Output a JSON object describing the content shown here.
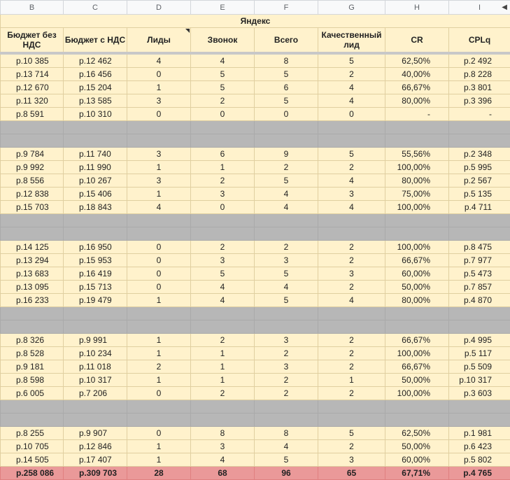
{
  "column_letters": [
    "B",
    "C",
    "D",
    "E",
    "F",
    "G",
    "H",
    "I"
  ],
  "group_title": "Яндекс",
  "headers": [
    "Бюджет без НДС",
    "Бюджет с НДС",
    "Лиды",
    "Звонок",
    "Всего",
    "Качественный лид",
    "CR",
    "CPLq"
  ],
  "blocks": [
    [
      [
        "р.10 385",
        "р.12 462",
        "4",
        "4",
        "8",
        "5",
        "62,50%",
        "р.2 492"
      ],
      [
        "р.13 714",
        "р.16 456",
        "0",
        "5",
        "5",
        "2",
        "40,00%",
        "р.8 228"
      ],
      [
        "р.12 670",
        "р.15 204",
        "1",
        "5",
        "6",
        "4",
        "66,67%",
        "р.3 801"
      ],
      [
        "р.11 320",
        "р.13 585",
        "3",
        "2",
        "5",
        "4",
        "80,00%",
        "р.3 396"
      ],
      [
        "р.8 591",
        "р.10 310",
        "0",
        "0",
        "0",
        "0",
        "-",
        "-"
      ]
    ],
    [
      [
        "р.9 784",
        "р.11 740",
        "3",
        "6",
        "9",
        "5",
        "55,56%",
        "р.2 348"
      ],
      [
        "р.9 992",
        "р.11 990",
        "1",
        "1",
        "2",
        "2",
        "100,00%",
        "р.5 995"
      ],
      [
        "р.8 556",
        "р.10 267",
        "3",
        "2",
        "5",
        "4",
        "80,00%",
        "р.2 567"
      ],
      [
        "р.12 838",
        "р.15 406",
        "1",
        "3",
        "4",
        "3",
        "75,00%",
        "р.5 135"
      ],
      [
        "р.15 703",
        "р.18 843",
        "4",
        "0",
        "4",
        "4",
        "100,00%",
        "р.4 711"
      ]
    ],
    [
      [
        "р.14 125",
        "р.16 950",
        "0",
        "2",
        "2",
        "2",
        "100,00%",
        "р.8 475"
      ],
      [
        "р.13 294",
        "р.15 953",
        "0",
        "3",
        "3",
        "2",
        "66,67%",
        "р.7 977"
      ],
      [
        "р.13 683",
        "р.16 419",
        "0",
        "5",
        "5",
        "3",
        "60,00%",
        "р.5 473"
      ],
      [
        "р.13 095",
        "р.15 713",
        "0",
        "4",
        "4",
        "2",
        "50,00%",
        "р.7 857"
      ],
      [
        "р.16 233",
        "р.19 479",
        "1",
        "4",
        "5",
        "4",
        "80,00%",
        "р.4 870"
      ]
    ],
    [
      [
        "р.8 326",
        "р.9 991",
        "1",
        "2",
        "3",
        "2",
        "66,67%",
        "р.4 995"
      ],
      [
        "р.8 528",
        "р.10 234",
        "1",
        "1",
        "2",
        "2",
        "100,00%",
        "р.5 117"
      ],
      [
        "р.9 181",
        "р.11 018",
        "2",
        "1",
        "3",
        "2",
        "66,67%",
        "р.5 509"
      ],
      [
        "р.8 598",
        "р.10 317",
        "1",
        "1",
        "2",
        "1",
        "50,00%",
        "р.10 317"
      ],
      [
        "р.6 005",
        "р.7 206",
        "0",
        "2",
        "2",
        "2",
        "100,00%",
        "р.3 603"
      ]
    ],
    [
      [
        "р.8 255",
        "р.9 907",
        "0",
        "8",
        "8",
        "5",
        "62,50%",
        "р.1 981"
      ],
      [
        "р.10 705",
        "р.12 846",
        "1",
        "3",
        "4",
        "2",
        "50,00%",
        "р.6 423"
      ],
      [
        "р.14 505",
        "р.17 407",
        "1",
        "4",
        "5",
        "3",
        "60,00%",
        "р.5 802"
      ]
    ]
  ],
  "totals": [
    "р.258 086",
    "р.309 703",
    "28",
    "68",
    "96",
    "65",
    "67,71%",
    "р.4 765"
  ],
  "colors": {
    "cell_bg": "#fff2cc",
    "separator": "#b7b7b7",
    "total_bg": "#ea9999"
  }
}
